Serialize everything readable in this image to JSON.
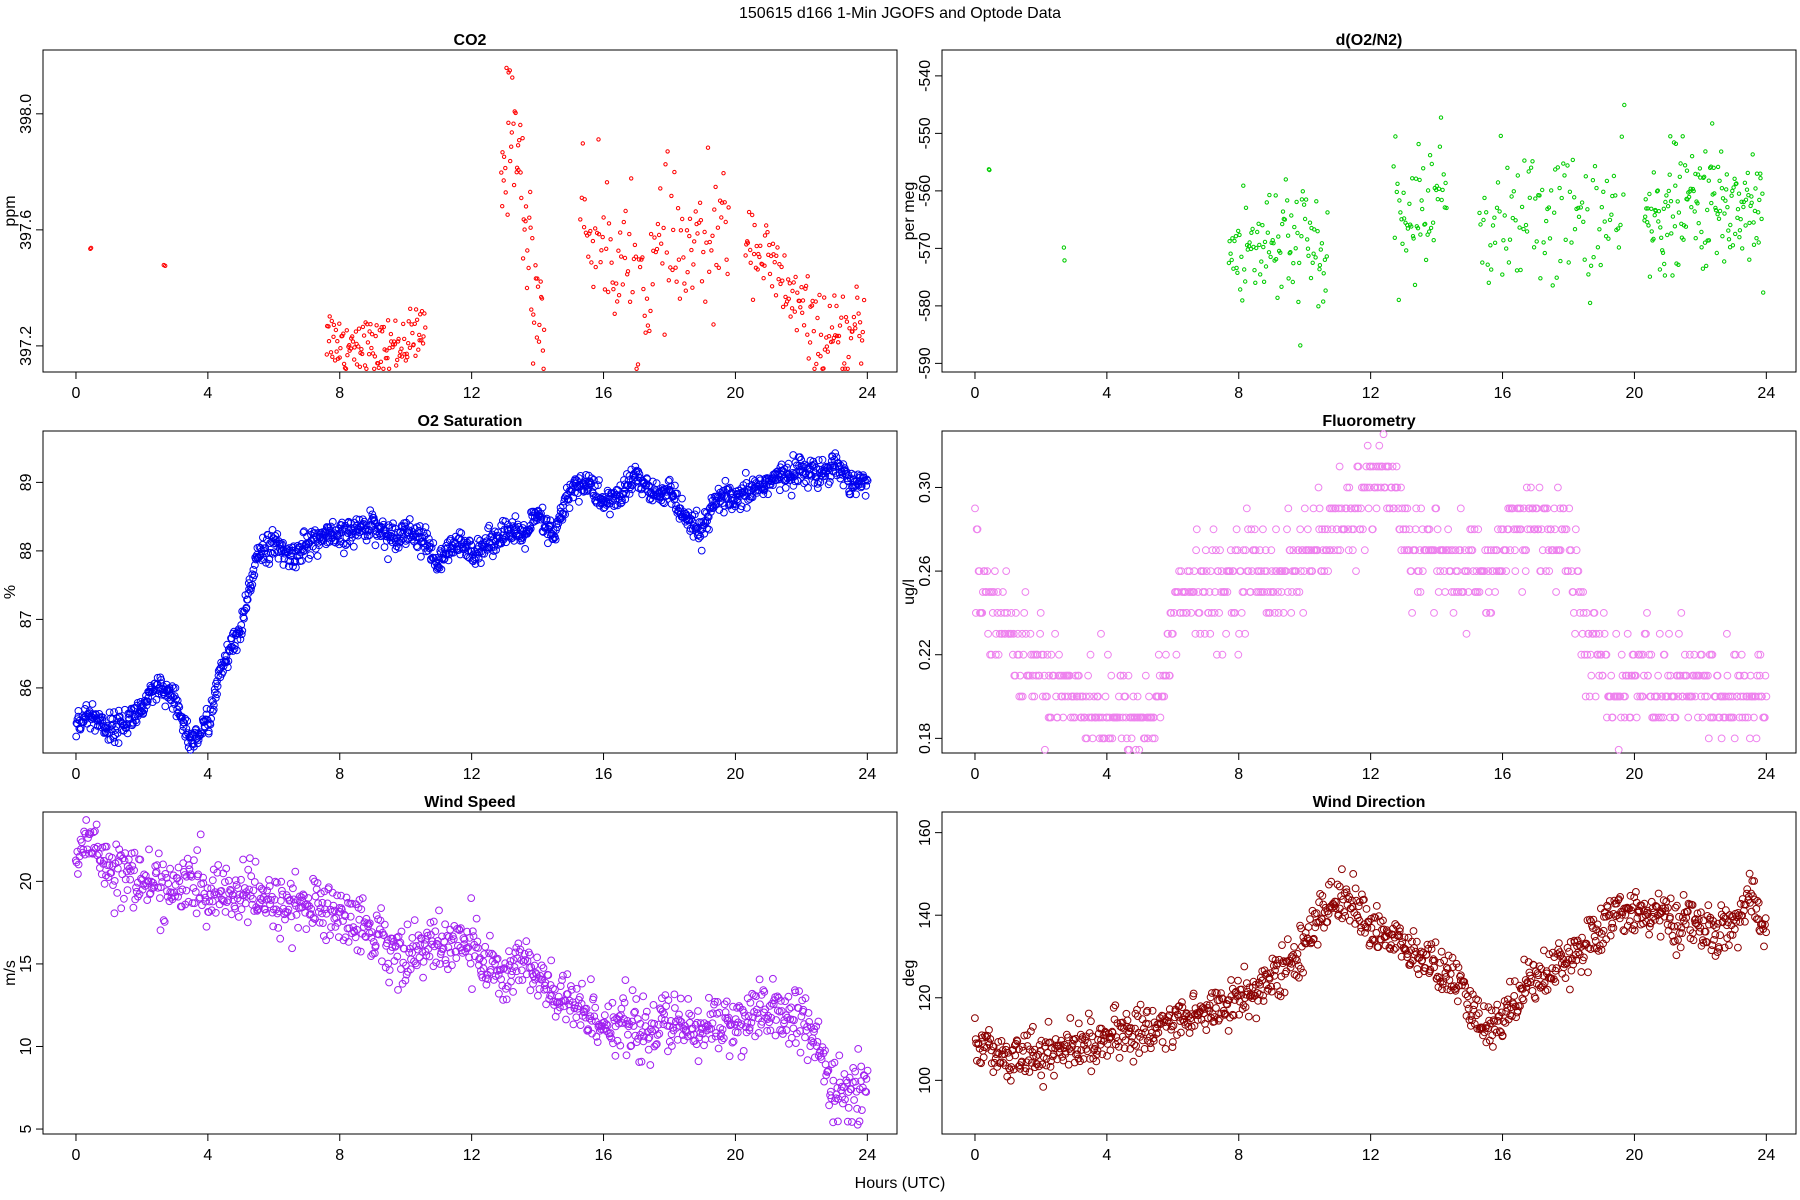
{
  "suptitle": "150615   d166   1-Min  JGOFS and Optode Data",
  "xlabel": "Hours (UTC)",
  "chart_data": [
    {
      "id": "co2",
      "type": "scatter",
      "title": "CO2",
      "ylabel": "ppm",
      "color": "#ff0000",
      "xlim": [
        -1,
        24.9
      ],
      "ylim": [
        397.11,
        398.22
      ],
      "xticks": [
        "0",
        "4",
        "8",
        "12",
        "16",
        "20",
        "24"
      ],
      "yticks": [
        "397.2",
        "397.6",
        "398.0"
      ],
      "segments": [
        {
          "x0": 0.43,
          "x1": 0.45,
          "y": [
            397.54,
            397.54
          ],
          "noise": 0.005,
          "density": 3
        },
        {
          "x0": 2.67,
          "x1": 2.7,
          "y": [
            397.48,
            397.48
          ],
          "noise": 0.01,
          "density": 4
        },
        {
          "x0": 7.6,
          "x1": 10.6,
          "y": [
            397.25,
            397.2,
            397.22,
            397.18,
            397.2,
            397.22,
            397.24
          ],
          "noise": 0.05,
          "density": 40
        },
        {
          "x0": 12.9,
          "x1": 14.2,
          "y": [
            397.75,
            398.05,
            397.7,
            397.4,
            397.3
          ],
          "noise": 0.12,
          "density": 45
        },
        {
          "x0": 15.3,
          "x1": 19.8,
          "y": [
            397.65,
            397.55,
            397.5,
            397.4,
            397.55,
            397.5,
            397.55,
            397.6
          ],
          "noise": 0.12,
          "density": 30
        },
        {
          "x0": 20.3,
          "x1": 23.9,
          "y": [
            397.6,
            397.5,
            397.4,
            397.3,
            397.22,
            397.2,
            397.28
          ],
          "noise": 0.07,
          "density": 35
        }
      ]
    },
    {
      "id": "do2n2",
      "type": "scatter",
      "title": "d(O2/N2)",
      "ylabel": "per meg",
      "color": "#00cc00",
      "xlim": [
        -1,
        24.9
      ],
      "ylim": [
        -591.5,
        -535.5
      ],
      "xticks": [
        "0",
        "4",
        "8",
        "12",
        "16",
        "20",
        "24"
      ],
      "yticks": [
        "-590",
        "-580",
        "-570",
        "-560",
        "-550",
        "-540"
      ],
      "segments": [
        {
          "x0": 0.42,
          "x1": 0.44,
          "y": [
            -556,
            -556
          ],
          "noise": 0.2,
          "density": 3
        },
        {
          "x0": 2.7,
          "x1": 2.72,
          "y": [
            -571,
            -571
          ],
          "noise": 1.2,
          "density": 3
        },
        {
          "x0": 7.7,
          "x1": 10.7,
          "y": [
            -572,
            -570,
            -568,
            -571,
            -569,
            -573
          ],
          "noise": 6,
          "density": 35
        },
        {
          "x0": 12.7,
          "x1": 14.3,
          "y": [
            -566,
            -565,
            -562,
            -558
          ],
          "noise": 5,
          "density": 35
        },
        {
          "x0": 15.3,
          "x1": 19.7,
          "y": [
            -566,
            -565,
            -564,
            -565,
            -564
          ],
          "noise": 6,
          "density": 25
        },
        {
          "x0": 20.3,
          "x1": 23.9,
          "y": [
            -566,
            -563,
            -562,
            -563,
            -562
          ],
          "noise": 5.5,
          "density": 45
        }
      ]
    },
    {
      "id": "o2sat",
      "type": "scatter",
      "title": "O2 Saturation",
      "ylabel": "%",
      "color": "#0000ee",
      "xlim": [
        -1,
        24.9
      ],
      "ylim": [
        85.05,
        89.75
      ],
      "xticks": [
        "0",
        "4",
        "8",
        "12",
        "16",
        "20",
        "24"
      ],
      "yticks": [
        "86",
        "87",
        "88",
        "89"
      ],
      "segments": [
        {
          "x0": 0,
          "x1": 24,
          "y": [
            85.5,
            85.6,
            85.4,
            85.5,
            85.7,
            86.0,
            85.8,
            85.2,
            85.5,
            86.4,
            86.8,
            88.0,
            88.1,
            87.9,
            88.1,
            88.2,
            88.2,
            88.3,
            88.4,
            88.2,
            88.3,
            88.2,
            87.8,
            88.1,
            88.0,
            88.1,
            88.3,
            88.2,
            88.5,
            88.2,
            88.9,
            89.0,
            88.7,
            88.8,
            89.1,
            88.8,
            88.9,
            88.4,
            88.3,
            88.8,
            88.7,
            88.9,
            89.0,
            89.1,
            89.2,
            89.1,
            89.3,
            89.0,
            89.0
          ],
          "noise": 0.1,
          "density": 60
        }
      ]
    },
    {
      "id": "fluor",
      "type": "scatter",
      "title": "Fluorometry",
      "ylabel": "ug/l",
      "color": "#ee82ee",
      "xlim": [
        -1,
        24.9
      ],
      "ylim": [
        0.173,
        0.327
      ],
      "xticks": [
        "0",
        "4",
        "8",
        "12",
        "16",
        "20",
        "24"
      ],
      "yticks": [
        "0.18",
        "0.22",
        "0.26",
        "0.30"
      ],
      "quantize": 0.01,
      "segments": [
        {
          "x0": 0,
          "x1": 24,
          "y": [
            0.26,
            0.25,
            0.23,
            0.22,
            0.21,
            0.21,
            0.2,
            0.2,
            0.19,
            0.19,
            0.19,
            0.19,
            0.24,
            0.25,
            0.25,
            0.25,
            0.26,
            0.26,
            0.26,
            0.26,
            0.27,
            0.27,
            0.28,
            0.29,
            0.3,
            0.3,
            0.28,
            0.27,
            0.27,
            0.26,
            0.26,
            0.26,
            0.27,
            0.28,
            0.28,
            0.28,
            0.27,
            0.23,
            0.21,
            0.2,
            0.21,
            0.21,
            0.2,
            0.21,
            0.2,
            0.2,
            0.2,
            0.2,
            0.2
          ],
          "noise": 0.012,
          "density": 40
        }
      ]
    },
    {
      "id": "wspd",
      "type": "scatter",
      "title": "Wind Speed",
      "ylabel": "m/s",
      "color": "#a020f0",
      "xlim": [
        -1,
        24.9
      ],
      "ylim": [
        4.7,
        24.2
      ],
      "xticks": [
        "0",
        "4",
        "8",
        "12",
        "16",
        "20",
        "24"
      ],
      "yticks": [
        "5",
        "10",
        "15",
        "20"
      ],
      "segments": [
        {
          "x0": 0,
          "x1": 24,
          "y": [
            21.5,
            22.5,
            21.0,
            20.5,
            20.0,
            19.8,
            19.5,
            20.0,
            19.0,
            19.5,
            19.2,
            19.0,
            18.5,
            18.8,
            18.5,
            18.3,
            18.0,
            17.5,
            17.0,
            16.0,
            15.5,
            16.0,
            16.0,
            16.5,
            16.0,
            15.0,
            14.0,
            15.5,
            14.0,
            13.0,
            12.5,
            12.0,
            11.5,
            11.5,
            11.0,
            11.0,
            11.5,
            11.0,
            11.0,
            11.5,
            11.5,
            11.5,
            12.0,
            12.0,
            11.5,
            10.0,
            7.0,
            7.5,
            8.0
          ],
          "noise": 0.9,
          "density": 45
        }
      ]
    },
    {
      "id": "wdir",
      "type": "scatter",
      "title": "Wind Direction",
      "ylabel": "deg",
      "color": "#8b0000",
      "xlim": [
        -1,
        24.9
      ],
      "ylim": [
        87,
        165
      ],
      "xticks": [
        "0",
        "4",
        "8",
        "12",
        "16",
        "20",
        "24"
      ],
      "yticks": [
        "100",
        "120",
        "140",
        "160"
      ],
      "segments": [
        {
          "x0": 0,
          "x1": 24,
          "y": [
            108,
            107,
            106,
            107,
            106,
            107,
            108,
            109,
            110,
            111,
            112,
            113,
            114,
            115,
            117,
            118,
            120,
            122,
            124,
            128,
            133,
            140,
            145,
            142,
            138,
            135,
            132,
            130,
            127,
            125,
            118,
            112,
            115,
            122,
            125,
            127,
            130,
            133,
            136,
            140,
            142,
            140,
            139,
            138,
            137,
            136,
            137,
            145,
            135
          ],
          "noise": 2.8,
          "density": 45
        }
      ]
    }
  ]
}
